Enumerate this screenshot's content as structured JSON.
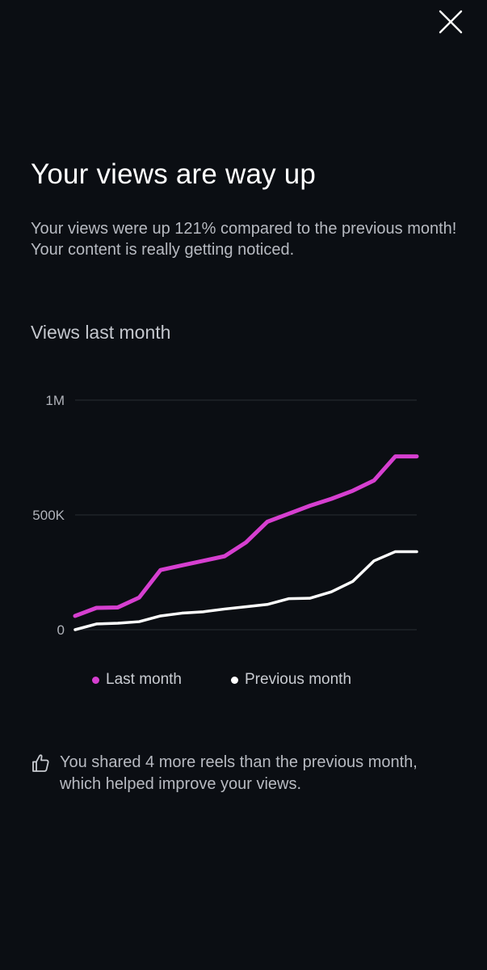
{
  "header": {
    "close_icon": "close-icon"
  },
  "main": {
    "title": "Your views are way up",
    "subtitle": "Your views were up 121% compared to the previous month! Your content is really getting noticed.",
    "section_title": "Views last month"
  },
  "colors": {
    "background": "#0b0e13",
    "last_month": "#d63fd0",
    "previous_month": "#ffffff",
    "grid": "#2a2d33",
    "tick_text": "#b0b3ba"
  },
  "chart_data": {
    "type": "line",
    "title": "Views last month",
    "xlabel": "",
    "ylabel": "",
    "ylim": [
      0,
      1000000
    ],
    "yticks": [
      {
        "value": 1000000,
        "label": "1M"
      },
      {
        "value": 500000,
        "label": "500K"
      },
      {
        "value": 0,
        "label": "0"
      }
    ],
    "x": [
      1,
      2,
      3,
      4,
      5,
      6,
      7,
      8,
      9,
      10,
      11,
      12,
      13,
      14,
      15,
      16,
      17
    ],
    "series": [
      {
        "name": "Last month",
        "color": "#d63fd0",
        "values": [
          60000,
          95000,
          97000,
          140000,
          260000,
          280000,
          300000,
          320000,
          380000,
          470000,
          505000,
          540000,
          570000,
          605000,
          650000,
          755000,
          755000
        ]
      },
      {
        "name": "Previous month",
        "color": "#ffffff",
        "values": [
          0,
          25000,
          28000,
          35000,
          60000,
          72000,
          78000,
          90000,
          100000,
          110000,
          135000,
          137000,
          165000,
          210000,
          300000,
          340000,
          340000
        ]
      }
    ],
    "grid": true,
    "legend": "bottom"
  },
  "legend": {
    "last_month_label": "Last month",
    "previous_month_label": "Previous month"
  },
  "insight": {
    "icon": "thumbs-up-icon",
    "text": "You shared 4 more reels than the previous month, which helped improve your views."
  }
}
